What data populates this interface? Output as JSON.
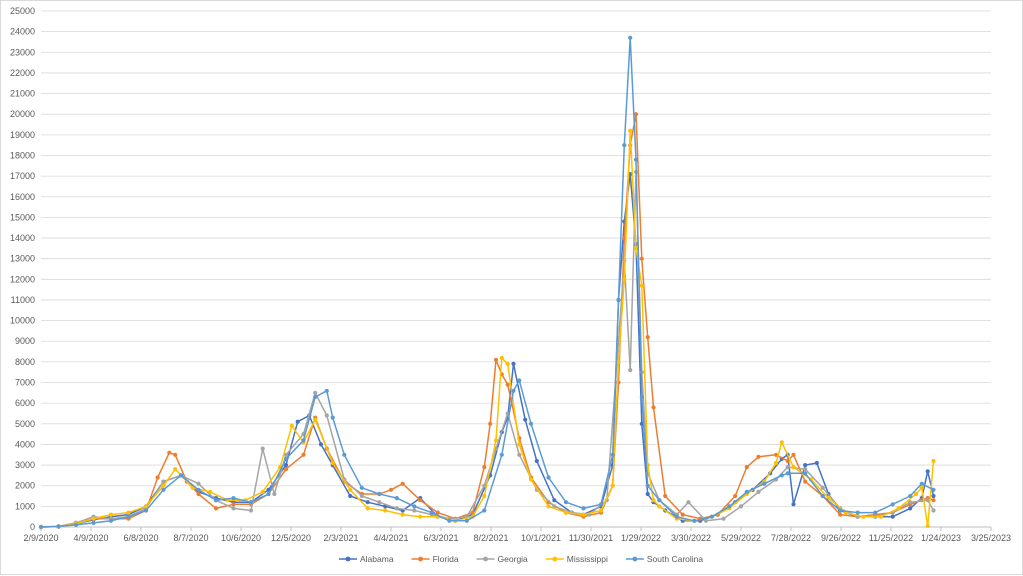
{
  "chart_data": {
    "type": "line",
    "title": "",
    "xlabel": "",
    "ylabel": "",
    "ylim": [
      0,
      25000
    ],
    "y_tick_step": 1000,
    "x_tick_labels": [
      "2/9/2020",
      "4/9/2020",
      "6/8/2020",
      "8/7/2020",
      "10/6/2020",
      "12/5/2020",
      "2/3/2021",
      "4/4/2021",
      "6/3/2021",
      "8/2/2021",
      "10/1/2021",
      "11/30/2021",
      "1/29/2022",
      "3/30/2022",
      "5/29/2022",
      "7/28/2022",
      "9/26/2022",
      "11/25/2022",
      "1/24/2023",
      "3/25/2023"
    ],
    "grid": "horizontal",
    "legend_position": "bottom",
    "markers": true,
    "series": [
      {
        "name": "Alabama",
        "color": "#4472c4",
        "x": [
          "2020-02-09",
          "2020-03-01",
          "2020-03-22",
          "2020-04-12",
          "2020-05-03",
          "2020-05-24",
          "2020-06-14",
          "2020-07-05",
          "2020-07-26",
          "2020-08-16",
          "2020-09-06",
          "2020-09-27",
          "2020-10-18",
          "2020-11-08",
          "2020-11-29",
          "2020-12-13",
          "2020-12-27",
          "2021-01-10",
          "2021-01-24",
          "2021-02-14",
          "2021-03-07",
          "2021-03-28",
          "2021-04-18",
          "2021-05-09",
          "2021-05-30",
          "2021-06-20",
          "2021-07-11",
          "2021-08-01",
          "2021-08-15",
          "2021-08-22",
          "2021-08-29",
          "2021-09-12",
          "2021-09-26",
          "2021-10-17",
          "2021-11-07",
          "2021-11-21",
          "2021-12-12",
          "2021-12-26",
          "2022-01-02",
          "2022-01-09",
          "2022-01-16",
          "2022-01-23",
          "2022-01-30",
          "2022-02-06",
          "2022-02-13",
          "2022-02-27",
          "2022-03-20",
          "2022-04-10",
          "2022-05-01",
          "2022-05-22",
          "2022-06-12",
          "2022-07-03",
          "2022-07-17",
          "2022-07-24",
          "2022-07-31",
          "2022-08-14",
          "2022-08-28",
          "2022-09-11",
          "2022-09-25",
          "2022-10-16",
          "2022-11-06",
          "2022-11-27",
          "2022-12-18",
          "2023-01-01",
          "2023-01-08",
          "2023-01-15"
        ],
        "values": [
          0,
          20,
          150,
          350,
          500,
          600,
          1000,
          2200,
          2500,
          1700,
          1400,
          1200,
          1200,
          1800,
          3000,
          5100,
          5400,
          4000,
          3000,
          1500,
          1200,
          1000,
          800,
          1400,
          500,
          300,
          600,
          2500,
          4600,
          5300,
          7900,
          5200,
          3200,
          1300,
          700,
          600,
          1000,
          3000,
          11000,
          14800,
          17100,
          13700,
          5000,
          1600,
          1200,
          800,
          300,
          300,
          600,
          1200,
          1800,
          2600,
          3300,
          3500,
          1100,
          3000,
          3100,
          1600,
          800,
          500,
          500,
          500,
          900,
          1400,
          2700,
          1500
        ]
      },
      {
        "name": "Florida",
        "color": "#ed7d31",
        "x": [
          "2020-02-09",
          "2020-03-01",
          "2020-03-22",
          "2020-04-12",
          "2020-05-03",
          "2020-05-24",
          "2020-06-14",
          "2020-06-28",
          "2020-07-12",
          "2020-07-19",
          "2020-08-02",
          "2020-08-16",
          "2020-09-06",
          "2020-09-27",
          "2020-10-18",
          "2020-11-08",
          "2020-11-29",
          "2020-12-20",
          "2021-01-03",
          "2021-01-17",
          "2021-02-07",
          "2021-02-28",
          "2021-03-21",
          "2021-04-04",
          "2021-04-18",
          "2021-05-09",
          "2021-05-30",
          "2021-06-20",
          "2021-07-11",
          "2021-07-25",
          "2021-08-01",
          "2021-08-08",
          "2021-08-15",
          "2021-08-22",
          "2021-09-05",
          "2021-09-19",
          "2021-10-10",
          "2021-10-31",
          "2021-11-21",
          "2021-12-12",
          "2021-12-26",
          "2022-01-02",
          "2022-01-09",
          "2022-01-16",
          "2022-01-23",
          "2022-01-30",
          "2022-02-06",
          "2022-02-13",
          "2022-02-27",
          "2022-03-20",
          "2022-04-10",
          "2022-05-01",
          "2022-05-22",
          "2022-06-05",
          "2022-06-19",
          "2022-07-10",
          "2022-07-24",
          "2022-07-31",
          "2022-08-14",
          "2022-09-04",
          "2022-09-25",
          "2022-10-16",
          "2022-11-06",
          "2022-11-27",
          "2022-12-18",
          "2023-01-01",
          "2023-01-08",
          "2023-01-15"
        ],
        "values": [
          0,
          30,
          200,
          400,
          400,
          400,
          800,
          2400,
          3600,
          3500,
          2200,
          1600,
          900,
          1100,
          1100,
          1600,
          2800,
          3500,
          5300,
          3800,
          2200,
          1600,
          1600,
          1800,
          2100,
          1300,
          700,
          400,
          700,
          2900,
          5000,
          8100,
          7400,
          6900,
          4300,
          2400,
          1200,
          700,
          500,
          700,
          2000,
          7000,
          14000,
          18500,
          20000,
          13000,
          9200,
          5800,
          1500,
          600,
          400,
          600,
          1500,
          2900,
          3400,
          3500,
          3200,
          3500,
          2200,
          1500,
          600,
          500,
          600,
          700,
          1100,
          1300,
          1400,
          1300
        ]
      },
      {
        "name": "Georgia",
        "color": "#a5a5a5",
        "x": [
          "2020-02-09",
          "2020-03-01",
          "2020-03-22",
          "2020-04-12",
          "2020-05-03",
          "2020-05-24",
          "2020-06-14",
          "2020-07-05",
          "2020-07-26",
          "2020-08-16",
          "2020-09-06",
          "2020-09-27",
          "2020-10-18",
          "2020-11-01",
          "2020-11-15",
          "2020-11-29",
          "2020-12-20",
          "2021-01-03",
          "2021-01-17",
          "2021-02-07",
          "2021-02-28",
          "2021-03-21",
          "2021-04-11",
          "2021-05-02",
          "2021-05-23",
          "2021-06-13",
          "2021-07-04",
          "2021-07-25",
          "2021-08-08",
          "2021-08-22",
          "2021-09-05",
          "2021-09-26",
          "2021-10-17",
          "2021-11-07",
          "2021-11-28",
          "2021-12-19",
          "2022-01-02",
          "2022-01-09",
          "2022-01-16",
          "2022-01-23",
          "2022-01-30",
          "2022-02-06",
          "2022-02-20",
          "2022-03-13",
          "2022-03-27",
          "2022-04-17",
          "2022-05-08",
          "2022-05-29",
          "2022-06-19",
          "2022-07-10",
          "2022-07-24",
          "2022-08-14",
          "2022-09-04",
          "2022-09-25",
          "2022-10-16",
          "2022-11-06",
          "2022-11-27",
          "2022-12-18",
          "2023-01-08",
          "2023-01-15"
        ],
        "values": [
          0,
          20,
          200,
          500,
          400,
          500,
          900,
          2200,
          2500,
          2100,
          1300,
          900,
          800,
          3800,
          1600,
          3500,
          4500,
          6500,
          5400,
          2300,
          1500,
          1200,
          900,
          800,
          600,
          400,
          500,
          2000,
          3800,
          5500,
          3500,
          1800,
          1000,
          700,
          600,
          1300,
          9000,
          12900,
          7600,
          17200,
          7500,
          2600,
          1300,
          600,
          1200,
          300,
          400,
          1000,
          1700,
          2300,
          2900,
          2800,
          1900,
          900,
          500,
          500,
          700,
          1200,
          1300,
          800
        ]
      },
      {
        "name": "Mississippi",
        "color": "#ffc000",
        "x": [
          "2020-02-09",
          "2020-03-01",
          "2020-03-22",
          "2020-04-12",
          "2020-05-03",
          "2020-05-24",
          "2020-06-14",
          "2020-07-05",
          "2020-07-19",
          "2020-08-09",
          "2020-08-30",
          "2020-09-20",
          "2020-10-11",
          "2020-11-01",
          "2020-11-22",
          "2020-12-06",
          "2020-12-20",
          "2021-01-03",
          "2021-01-24",
          "2021-02-14",
          "2021-03-07",
          "2021-03-28",
          "2021-04-18",
          "2021-05-09",
          "2021-05-30",
          "2021-06-20",
          "2021-07-11",
          "2021-07-25",
          "2021-08-08",
          "2021-08-15",
          "2021-08-22",
          "2021-09-05",
          "2021-09-19",
          "2021-10-10",
          "2021-10-31",
          "2021-11-21",
          "2021-12-12",
          "2021-12-26",
          "2022-01-02",
          "2022-01-09",
          "2022-01-16",
          "2022-01-23",
          "2022-01-30",
          "2022-02-06",
          "2022-02-13",
          "2022-02-20",
          "2022-03-13",
          "2022-04-03",
          "2022-04-24",
          "2022-05-15",
          "2022-06-05",
          "2022-06-26",
          "2022-07-10",
          "2022-07-17",
          "2022-07-31",
          "2022-08-21",
          "2022-09-11",
          "2022-10-02",
          "2022-10-23",
          "2022-11-13",
          "2022-12-04",
          "2022-12-25",
          "2023-01-01",
          "2023-01-08",
          "2023-01-15"
        ],
        "values": [
          0,
          20,
          150,
          400,
          600,
          700,
          1000,
          2000,
          2800,
          1900,
          1700,
          1300,
          1300,
          1700,
          2900,
          4900,
          4100,
          5200,
          3100,
          1800,
          900,
          800,
          600,
          500,
          500,
          300,
          500,
          1500,
          4200,
          8200,
          7900,
          4000,
          2300,
          1000,
          700,
          600,
          800,
          2000,
          8000,
          12000,
          19200,
          13500,
          11700,
          3000,
          1300,
          1000,
          400,
          300,
          500,
          900,
          1600,
          2200,
          3100,
          4100,
          2900,
          2300,
          1400,
          700,
          500,
          500,
          900,
          1600,
          1900,
          50,
          3200
        ]
      },
      {
        "name": "South Carolina",
        "color": "#5b9bd5",
        "x": [
          "2020-02-09",
          "2020-03-01",
          "2020-03-22",
          "2020-04-12",
          "2020-05-03",
          "2020-05-24",
          "2020-06-14",
          "2020-07-05",
          "2020-07-26",
          "2020-08-16",
          "2020-09-06",
          "2020-09-27",
          "2020-10-18",
          "2020-11-08",
          "2020-11-29",
          "2020-12-20",
          "2021-01-03",
          "2021-01-17",
          "2021-01-24",
          "2021-02-07",
          "2021-02-28",
          "2021-03-21",
          "2021-04-11",
          "2021-05-02",
          "2021-05-23",
          "2021-06-13",
          "2021-07-04",
          "2021-07-25",
          "2021-08-15",
          "2021-08-29",
          "2021-09-05",
          "2021-09-19",
          "2021-10-10",
          "2021-10-31",
          "2021-11-21",
          "2021-12-12",
          "2021-12-26",
          "2022-01-02",
          "2022-01-09",
          "2022-01-16",
          "2022-01-23",
          "2022-01-30",
          "2022-02-06",
          "2022-02-20",
          "2022-03-13",
          "2022-04-03",
          "2022-04-24",
          "2022-05-15",
          "2022-06-05",
          "2022-06-26",
          "2022-07-17",
          "2022-07-24",
          "2022-08-14",
          "2022-09-04",
          "2022-09-25",
          "2022-10-16",
          "2022-11-06",
          "2022-11-27",
          "2022-12-18",
          "2023-01-01",
          "2023-01-15"
        ],
        "values": [
          0,
          30,
          100,
          200,
          300,
          500,
          800,
          1800,
          2500,
          1800,
          1300,
          1400,
          1200,
          1600,
          3300,
          4200,
          6300,
          6600,
          5300,
          3500,
          1900,
          1600,
          1400,
          1000,
          700,
          300,
          300,
          800,
          3500,
          6600,
          7100,
          5000,
          2400,
          1200,
          900,
          1100,
          3500,
          11000,
          18500,
          23700,
          17800,
          6300,
          2000,
          1300,
          500,
          300,
          500,
          1000,
          1700,
          2100,
          2500,
          2600,
          2600,
          1500,
          800,
          700,
          700,
          1100,
          1500,
          2100,
          1800
        ]
      }
    ]
  }
}
